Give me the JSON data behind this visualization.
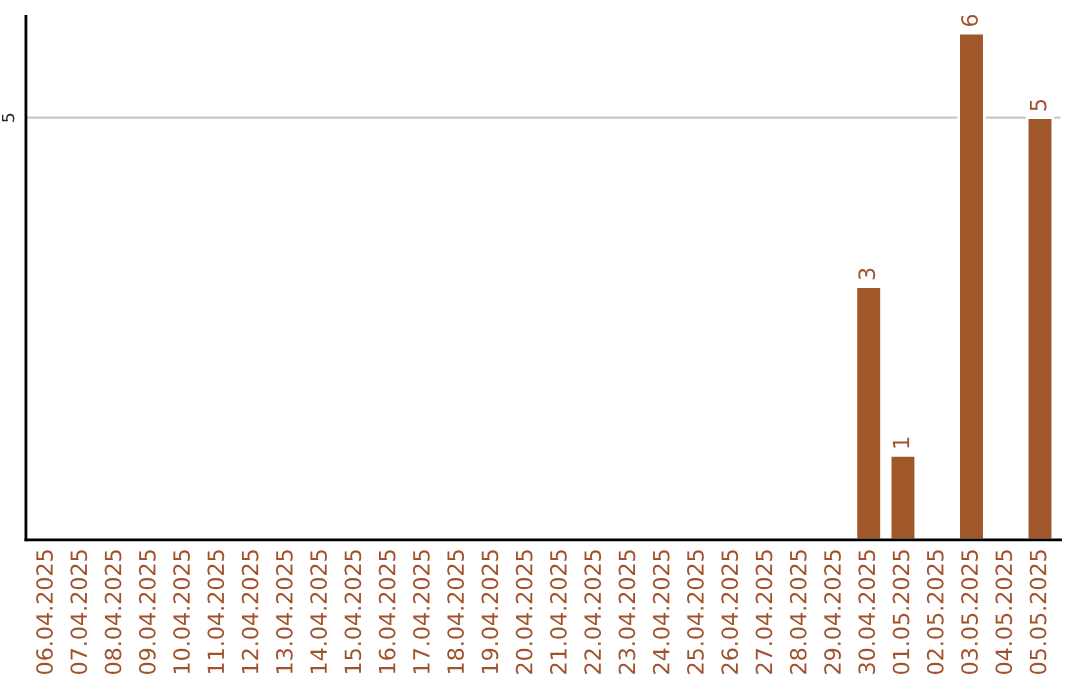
{
  "chart_data": {
    "type": "bar",
    "categories": [
      "06.04.2025",
      "07.04.2025",
      "08.04.2025",
      "09.04.2025",
      "10.04.2025",
      "11.04.2025",
      "12.04.2025",
      "13.04.2025",
      "14.04.2025",
      "15.04.2025",
      "16.04.2025",
      "17.04.2025",
      "18.04.2025",
      "19.04.2025",
      "20.04.2025",
      "21.04.2025",
      "22.04.2025",
      "23.04.2025",
      "24.04.2025",
      "25.04.2025",
      "26.04.2025",
      "27.04.2025",
      "28.04.2025",
      "29.04.2025",
      "30.04.2025",
      "01.05.2025",
      "02.05.2025",
      "03.05.2025",
      "04.05.2025",
      "05.05.2025"
    ],
    "values": [
      null,
      null,
      null,
      null,
      null,
      null,
      null,
      null,
      null,
      null,
      null,
      null,
      null,
      null,
      null,
      null,
      null,
      null,
      null,
      null,
      null,
      null,
      null,
      null,
      3,
      1,
      null,
      6,
      null,
      5
    ],
    "data_labels": true,
    "color": "#a0582a",
    "ylim": [
      0,
      6.2
    ],
    "ref_lines": [
      {
        "axis": "y",
        "value": 5,
        "label": "5",
        "color": "#c8c8c8"
      }
    ],
    "legend": false
  }
}
